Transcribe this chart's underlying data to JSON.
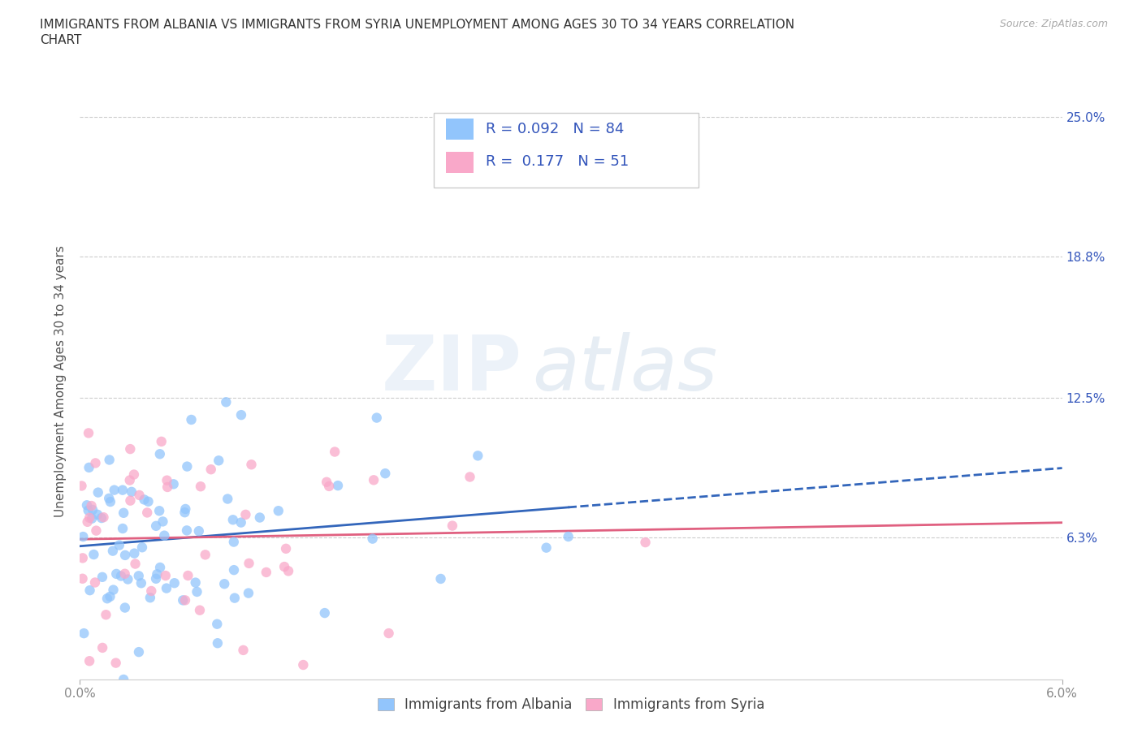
{
  "title_line1": "IMMIGRANTS FROM ALBANIA VS IMMIGRANTS FROM SYRIA UNEMPLOYMENT AMONG AGES 30 TO 34 YEARS CORRELATION",
  "title_line2": "CHART",
  "source": "Source: ZipAtlas.com",
  "ylabel": "Unemployment Among Ages 30 to 34 years",
  "albania_color": "#92c5fc",
  "syria_color": "#f9a8c9",
  "albania_line_color": "#3366bb",
  "syria_line_color": "#e06080",
  "albania_R": 0.092,
  "albania_N": 84,
  "syria_R": 0.177,
  "syria_N": 51,
  "xlim": [
    0.0,
    0.06
  ],
  "ylim": [
    0.0,
    0.265
  ],
  "yticks": [
    0.063,
    0.125,
    0.188,
    0.25
  ],
  "ytick_labels": [
    "6.3%",
    "12.5%",
    "18.8%",
    "25.0%"
  ],
  "xtick_left_label": "0.0%",
  "xtick_right_label": "6.0%",
  "watermark_zip": "ZIP",
  "watermark_atlas": "atlas",
  "legend_label_albania": "Immigrants from Albania",
  "legend_label_syria": "Immigrants from Syria",
  "background_color": "#ffffff",
  "grid_color": "#cccccc",
  "title_color": "#333333",
  "axis_label_color": "#3355bb",
  "legend_R_N_color": "#3355bb",
  "tick_color": "#888888"
}
